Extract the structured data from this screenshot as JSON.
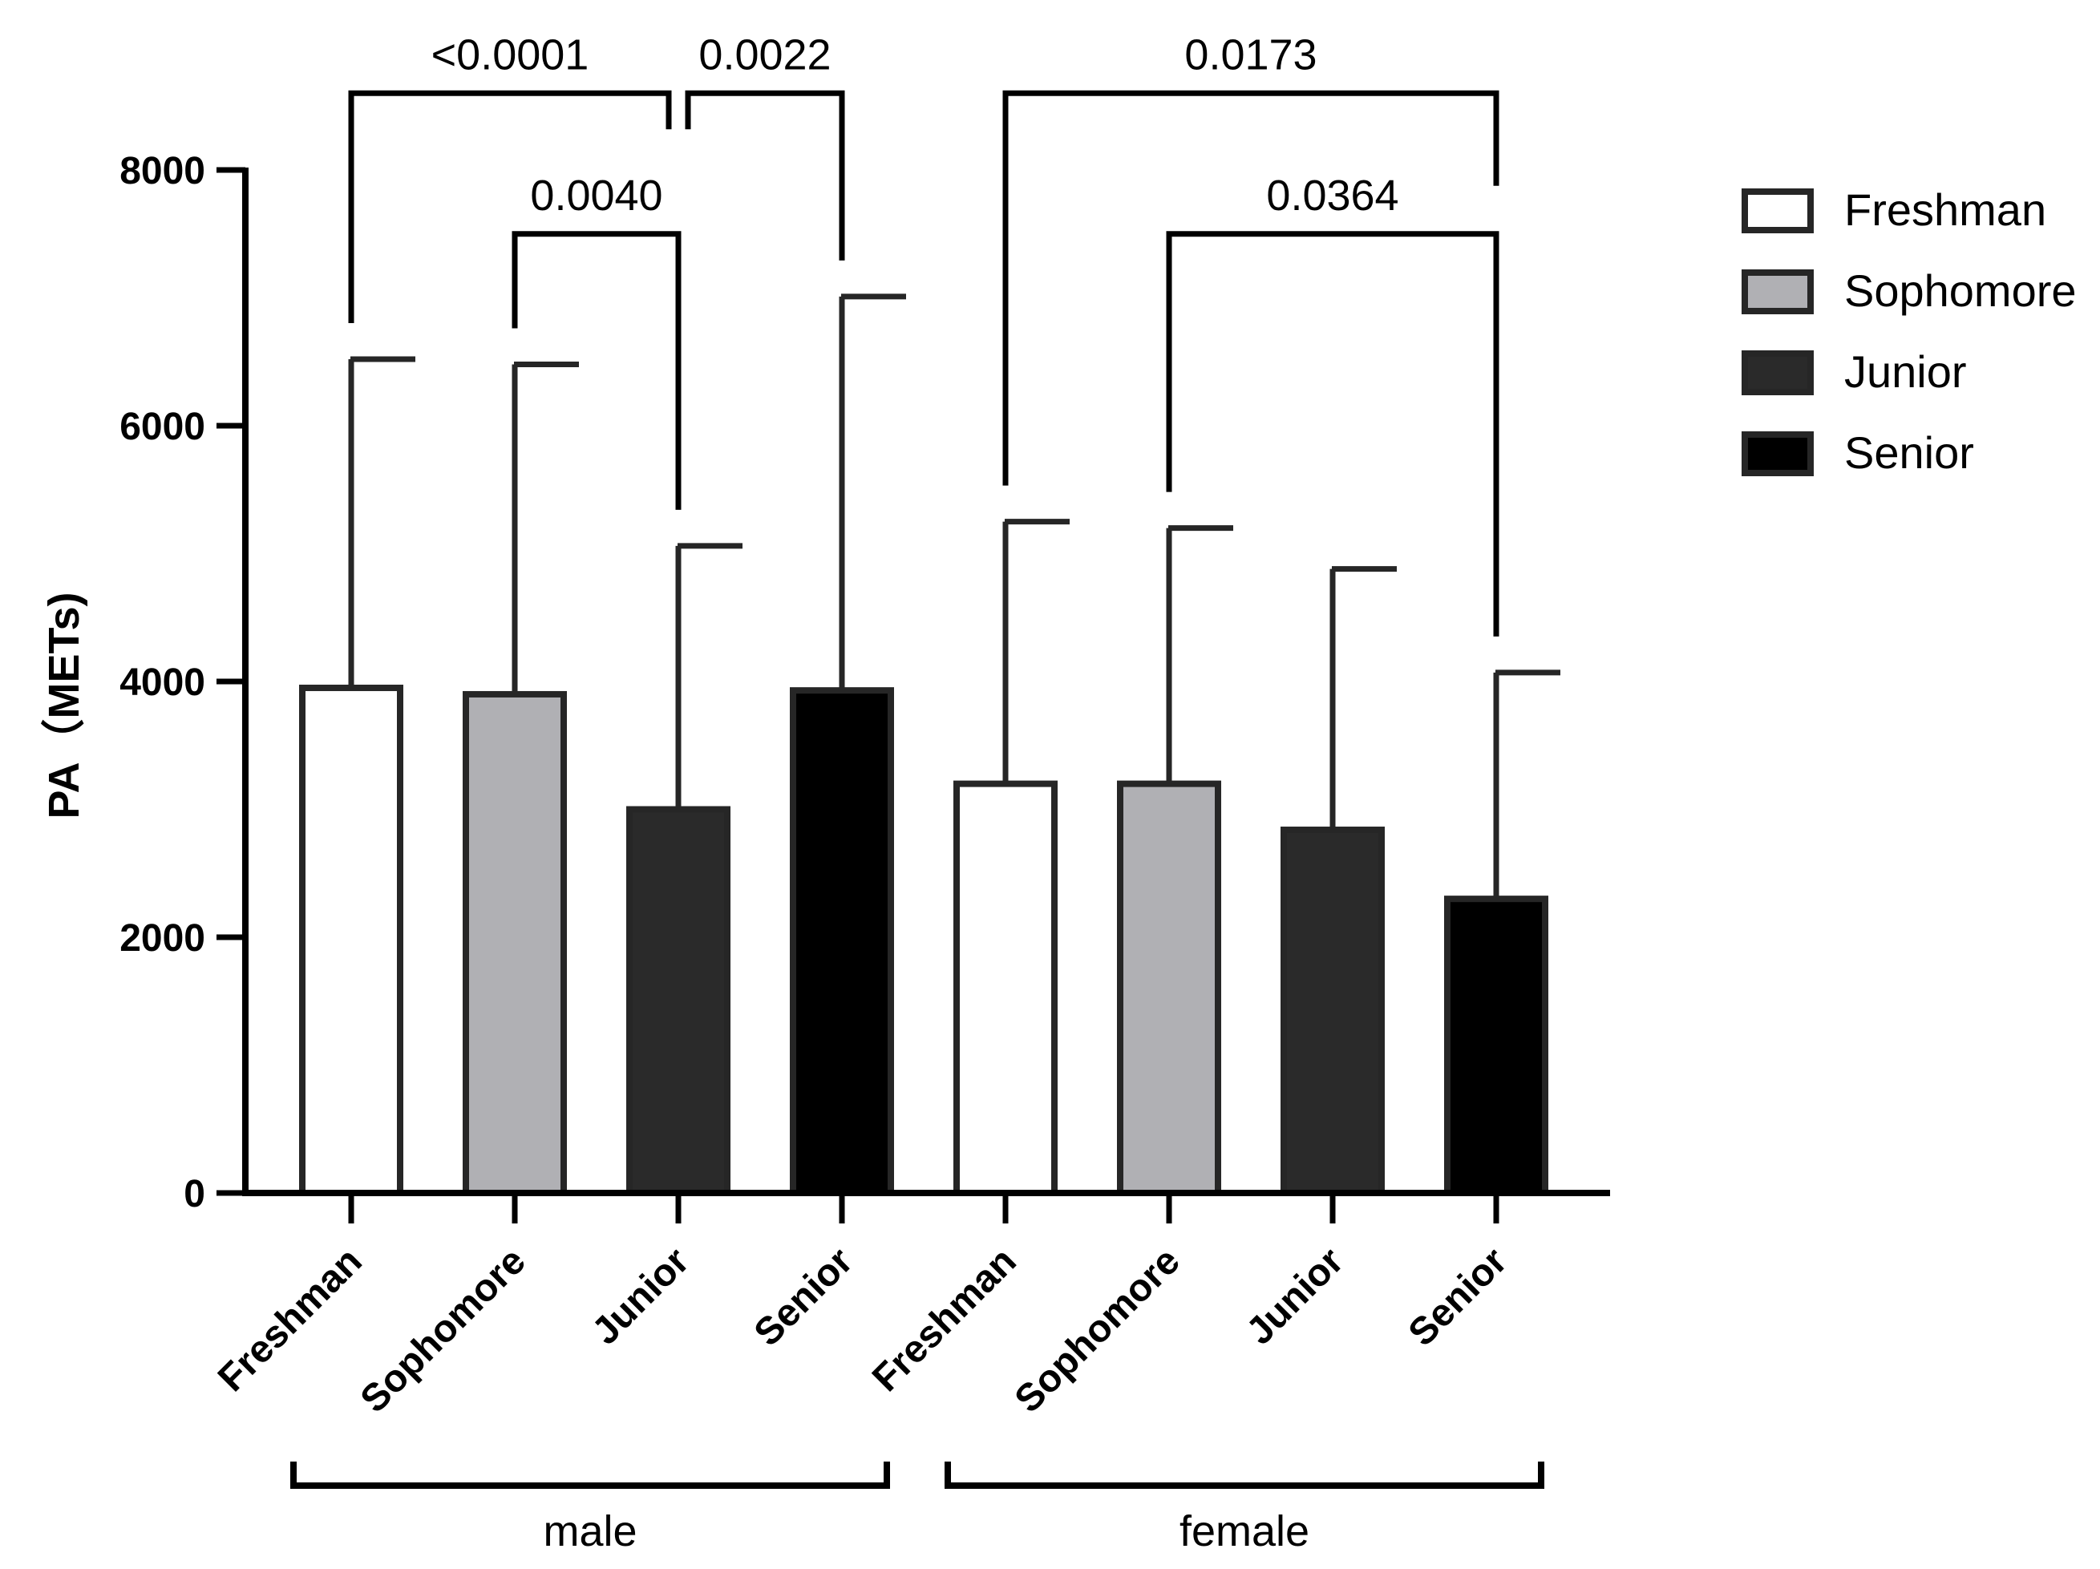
{
  "chart_data": {
    "type": "bar",
    "title": "",
    "ylabel": "PA（METs)",
    "xlabel": "",
    "ylim": [
      0,
      8000
    ],
    "yticks": [
      "0",
      "2000",
      "4000",
      "6000",
      "8000"
    ],
    "categories": [
      "Freshman",
      "Sophomore",
      "Junior",
      "Senior",
      "Freshman",
      "Sophomore",
      "Junior",
      "Senior"
    ],
    "groups": [
      {
        "name": "male",
        "start": 0,
        "end": 3
      },
      {
        "name": "female",
        "start": 4,
        "end": 7
      }
    ],
    "series": [
      {
        "name": "Freshman",
        "color": "#ffffff"
      },
      {
        "name": "Sophomore",
        "color": "#b0b0b4"
      },
      {
        "name": "Junior",
        "color": "#2a2a2a"
      },
      {
        "name": "Senior",
        "color": "#000000"
      }
    ],
    "bars": [
      {
        "category": "Freshman",
        "group": "male",
        "series": "Freshman",
        "value": 3950,
        "error": 6520
      },
      {
        "category": "Sophomore",
        "group": "male",
        "series": "Sophomore",
        "value": 3900,
        "error": 6480
      },
      {
        "category": "Junior",
        "group": "male",
        "series": "Junior",
        "value": 3000,
        "error": 5060
      },
      {
        "category": "Senior",
        "group": "male",
        "series": "Senior",
        "value": 3930,
        "error": 7010
      },
      {
        "category": "Freshman",
        "group": "female",
        "series": "Freshman",
        "value": 3200,
        "error": 5250
      },
      {
        "category": "Sophomore",
        "group": "female",
        "series": "Sophomore",
        "value": 3200,
        "error": 5200
      },
      {
        "category": "Junior",
        "group": "female",
        "series": "Junior",
        "value": 2840,
        "error": 4880
      },
      {
        "category": "Senior",
        "group": "female",
        "series": "Senior",
        "value": 2300,
        "error": 4070
      }
    ],
    "annotations": [
      {
        "from": 0,
        "to": 2,
        "label": "<0.0001",
        "level": 8600
      },
      {
        "from": 2,
        "to": 3,
        "label": "0.0022",
        "level": 8600
      },
      {
        "from": 1,
        "to": 2,
        "label": "0.0040",
        "level": 7500
      },
      {
        "from": 4,
        "to": 7,
        "label": "0.0173",
        "level": 8600
      },
      {
        "from": 5,
        "to": 7,
        "label": "0.0364",
        "level": 7500
      }
    ],
    "legend": {
      "position": "top-right",
      "entries": [
        "Freshman",
        "Sophomore",
        "Junior",
        "Senior"
      ]
    }
  }
}
